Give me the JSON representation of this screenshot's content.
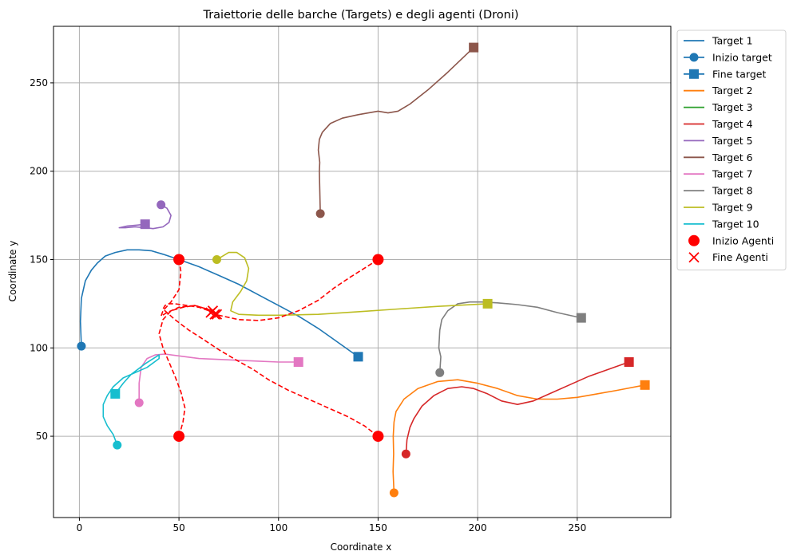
{
  "chart_data": {
    "type": "line",
    "title": "Traiettorie delle barche (Targets) e degli agenti (Droni)",
    "xlabel": "Coordinate x",
    "ylabel": "Coordinate y",
    "xlim": [
      -13,
      297
    ],
    "ylim": [
      4,
      282
    ],
    "xticks": [
      0,
      50,
      100,
      150,
      200,
      250
    ],
    "yticks": [
      50,
      100,
      150,
      200,
      250
    ],
    "grid": true,
    "legend_position": "outside-top-right",
    "series": [
      {
        "name": "Target 1",
        "color": "#1f77b4",
        "x": [
          1,
          0.5,
          1,
          3,
          6,
          9,
          13,
          18,
          24,
          30,
          36,
          42,
          50,
          60,
          70,
          80,
          90,
          100,
          110,
          120,
          130,
          140
        ],
        "y": [
          101,
          115,
          128,
          138,
          144,
          148,
          152,
          154,
          155.5,
          155.5,
          155,
          153,
          150,
          146,
          141,
          136,
          130,
          124,
          118,
          111,
          103,
          95
        ]
      },
      {
        "name": "Target 2",
        "color": "#ff7f0e",
        "x": [
          158,
          157.5,
          157.8,
          157.6,
          158,
          158.5,
          159,
          163,
          170,
          180,
          190,
          200,
          210,
          220,
          230,
          240,
          250,
          260,
          270,
          284
        ],
        "y": [
          18,
          30,
          40,
          50,
          58,
          61,
          64,
          71,
          77,
          81,
          82,
          80,
          77,
          73,
          71,
          71,
          72,
          74,
          76,
          79
        ]
      },
      {
        "name": "Target 4",
        "color": "#d62728",
        "x": [
          164,
          164.5,
          166,
          168,
          172,
          178,
          185,
          192,
          198,
          205,
          212,
          220,
          228,
          236,
          246,
          256,
          266,
          276
        ],
        "y": [
          40,
          48,
          55,
          60,
          67,
          73,
          77,
          78,
          77,
          74,
          70,
          68,
          70,
          74,
          79,
          84,
          88,
          92
        ]
      },
      {
        "name": "Target 5",
        "color": "#9467bd",
        "x": [
          41,
          44,
          46,
          45,
          42,
          37,
          33,
          28,
          23,
          20,
          24,
          29,
          33
        ],
        "y": [
          181,
          179,
          175,
          171,
          168.5,
          167.5,
          168,
          168.5,
          168,
          168,
          169,
          169.5,
          170
        ]
      },
      {
        "name": "Target 6",
        "color": "#8c564b",
        "x": [
          121,
          120.7,
          120.5,
          120.7,
          120,
          120.5,
          122,
          126,
          132,
          140,
          150,
          155,
          160,
          166,
          175,
          185,
          198
        ],
        "y": [
          176,
          190,
          200,
          205,
          212,
          218,
          222,
          227,
          230,
          232,
          234,
          233,
          234,
          238,
          246,
          256,
          270
        ]
      },
      {
        "name": "Target 7",
        "color": "#e377c2",
        "x": [
          30,
          30,
          31,
          34,
          38,
          43,
          50,
          60,
          70,
          80,
          90,
          100,
          110
        ],
        "y": [
          69,
          80,
          89,
          94,
          96,
          96.5,
          95.5,
          94,
          93.5,
          93,
          92.5,
          92,
          92
        ]
      },
      {
        "name": "Target 8",
        "color": "#7f7f7f",
        "x": [
          181,
          181.5,
          180.5,
          181,
          182,
          185,
          190,
          196,
          202,
          210,
          220,
          230,
          240,
          252
        ],
        "y": [
          86,
          95,
          100,
          110,
          116,
          121,
          125,
          126,
          126,
          125.5,
          124.5,
          123,
          120,
          117
        ]
      },
      {
        "name": "Target 9",
        "color": "#bcbd22",
        "x": [
          69,
          72,
          75,
          79,
          83,
          85,
          84,
          81,
          77,
          76,
          80,
          90,
          100,
          120,
          140,
          160,
          180,
          205
        ],
        "y": [
          150,
          152,
          154,
          154,
          151,
          145,
          138,
          132,
          126,
          121,
          119,
          118.5,
          118.5,
          119,
          120.5,
          122,
          123.5,
          125
        ]
      },
      {
        "name": "Target 10",
        "color": "#17becf",
        "x": [
          19,
          17,
          14,
          12,
          12,
          14,
          17,
          22,
          28,
          34,
          40,
          40,
          33,
          26,
          22,
          18
        ],
        "y": [
          45,
          51,
          56,
          61,
          68,
          73,
          78,
          83,
          86,
          89,
          94,
          96,
          91,
          85,
          80,
          74
        ]
      }
    ],
    "drone_paths": [
      {
        "x": [
          50,
          51,
          50,
          46,
          42,
          41,
          44,
          50,
          58,
          64,
          66
        ],
        "y": [
          150,
          143,
          133,
          126,
          121,
          118,
          120,
          123,
          124,
          122,
          120
        ]
      },
      {
        "x": [
          150,
          143,
          136,
          128,
          120,
          110,
          100,
          90,
          80,
          72,
          68
        ],
        "y": [
          150,
          145,
          140,
          134,
          127,
          121,
          117,
          115.5,
          116,
          118,
          119
        ]
      },
      {
        "x": [
          50,
          52,
          53,
          51,
          48,
          45,
          42,
          40,
          42,
          46,
          52,
          58,
          64,
          67
        ],
        "y": [
          50,
          58,
          66,
          75,
          84,
          92,
          100,
          108,
          116,
          121,
          123,
          124,
          122,
          121
        ]
      },
      {
        "x": [
          150,
          143,
          135,
          125,
          115,
          105,
          95,
          87,
          79,
          70,
          62,
          55,
          48,
          44,
          42,
          43,
          45,
          48,
          54,
          60,
          65,
          69
        ],
        "y": [
          50,
          56,
          61,
          66,
          71,
          76,
          82,
          88,
          93,
          99,
          105,
          110,
          116,
          120,
          122,
          124,
          125,
          125,
          124,
          123,
          121,
          119
        ]
      }
    ],
    "start_markers_targets": [
      {
        "x": 1,
        "y": 101,
        "color": "#1f77b4"
      },
      {
        "x": 158,
        "y": 18,
        "color": "#ff7f0e"
      },
      {
        "x": 164,
        "y": 40,
        "color": "#d62728"
      },
      {
        "x": 41,
        "y": 181,
        "color": "#9467bd"
      },
      {
        "x": 121,
        "y": 176,
        "color": "#8c564b"
      },
      {
        "x": 30,
        "y": 69,
        "color": "#e377c2"
      },
      {
        "x": 181,
        "y": 86,
        "color": "#7f7f7f"
      },
      {
        "x": 69,
        "y": 150,
        "color": "#bcbd22"
      },
      {
        "x": 19,
        "y": 45,
        "color": "#17becf"
      }
    ],
    "end_markers_targets": [
      {
        "x": 140,
        "y": 95,
        "color": "#1f77b4"
      },
      {
        "x": 284,
        "y": 79,
        "color": "#ff7f0e"
      },
      {
        "x": 276,
        "y": 92,
        "color": "#d62728"
      },
      {
        "x": 33,
        "y": 170,
        "color": "#9467bd"
      },
      {
        "x": 198,
        "y": 270,
        "color": "#8c564b"
      },
      {
        "x": 110,
        "y": 92,
        "color": "#e377c2"
      },
      {
        "x": 252,
        "y": 117,
        "color": "#7f7f7f"
      },
      {
        "x": 205,
        "y": 125,
        "color": "#bcbd22"
      },
      {
        "x": 18,
        "y": 74,
        "color": "#17becf"
      }
    ],
    "agent_starts": [
      {
        "x": 50,
        "y": 150
      },
      {
        "x": 150,
        "y": 150
      },
      {
        "x": 50,
        "y": 50
      },
      {
        "x": 150,
        "y": 50
      }
    ],
    "agent_ends": [
      {
        "x": 66,
        "y": 120
      },
      {
        "x": 68,
        "y": 119
      },
      {
        "x": 67,
        "y": 121
      },
      {
        "x": 69,
        "y": 119
      }
    ],
    "legend": [
      {
        "label": "Target 1",
        "kind": "line",
        "color": "#1f77b4"
      },
      {
        "label": "Inizio target",
        "kind": "line-circle",
        "color": "#1f77b4"
      },
      {
        "label": "Fine target",
        "kind": "line-square",
        "color": "#1f77b4"
      },
      {
        "label": "Target 2",
        "kind": "line",
        "color": "#ff7f0e"
      },
      {
        "label": "Target 3",
        "kind": "line",
        "color": "#2ca02c"
      },
      {
        "label": "Target 4",
        "kind": "line",
        "color": "#d62728"
      },
      {
        "label": "Target 5",
        "kind": "line",
        "color": "#9467bd"
      },
      {
        "label": "Target 6",
        "kind": "line",
        "color": "#8c564b"
      },
      {
        "label": "Target 7",
        "kind": "line",
        "color": "#e377c2"
      },
      {
        "label": "Target 8",
        "kind": "line",
        "color": "#7f7f7f"
      },
      {
        "label": "Target 9",
        "kind": "line",
        "color": "#bcbd22"
      },
      {
        "label": "Target 10",
        "kind": "line",
        "color": "#17becf"
      },
      {
        "label": "Inizio Agenti",
        "kind": "circle",
        "color": "#ff0000"
      },
      {
        "label": "Fine Agenti",
        "kind": "x",
        "color": "#ff0000"
      }
    ]
  }
}
